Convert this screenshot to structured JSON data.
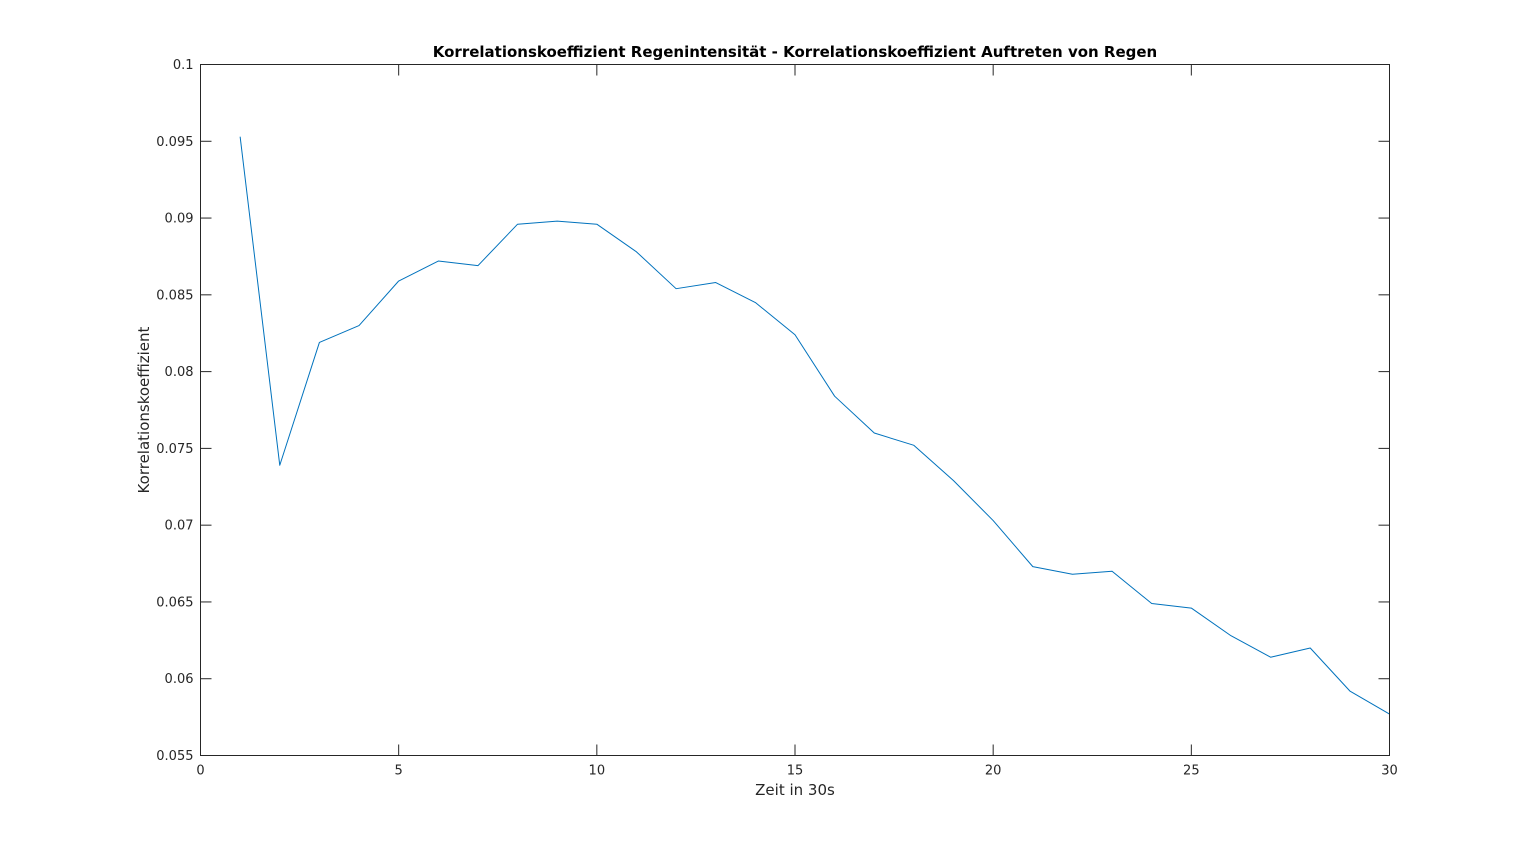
{
  "chart_data": {
    "type": "line",
    "title": "Korrelationskoeffizient Regenintensität - Korrelationskoeffizient Auftreten von Regen",
    "xlabel": "Zeit in 30s",
    "ylabel": "Korrelationskoeffizient",
    "xlim": [
      0,
      30
    ],
    "ylim": [
      0.055,
      0.1
    ],
    "x_ticks": [
      0,
      5,
      10,
      15,
      20,
      25,
      30
    ],
    "x_tick_labels": [
      "0",
      "5",
      "10",
      "15",
      "20",
      "25",
      "30"
    ],
    "y_ticks": [
      0.055,
      0.06,
      0.065,
      0.07,
      0.075,
      0.08,
      0.085,
      0.09,
      0.095,
      0.1
    ],
    "y_tick_labels": [
      "0.055",
      "0.06",
      "0.065",
      "0.07",
      "0.075",
      "0.08",
      "0.085",
      "0.09",
      "0.095",
      "0.1"
    ],
    "grid": false,
    "legend": "none",
    "line_color": "#0072BD",
    "series": [
      {
        "x": [
          1,
          2,
          3,
          4,
          5,
          6,
          7,
          8,
          9,
          10,
          11,
          12,
          13,
          14,
          15,
          16,
          17,
          18,
          19,
          20,
          21,
          22,
          23,
          24,
          25,
          26,
          27,
          28,
          29,
          30
        ],
        "values": [
          0.0953,
          0.0739,
          0.0819,
          0.083,
          0.0859,
          0.0872,
          0.0869,
          0.0896,
          0.0898,
          0.0896,
          0.0878,
          0.0854,
          0.0858,
          0.0845,
          0.0824,
          0.0784,
          0.076,
          0.0752,
          0.0729,
          0.0703,
          0.0673,
          0.0668,
          0.067,
          0.0649,
          0.0646,
          0.0628,
          0.0614,
          0.062,
          0.0592,
          0.0577
        ]
      }
    ]
  }
}
